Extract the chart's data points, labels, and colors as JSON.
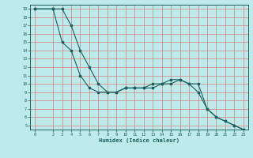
{
  "xlabel": "Humidex (Indice chaleur)",
  "bg_color": "#beeaea",
  "grid_color": "#d08080",
  "line_color": "#1a5f5f",
  "curve1_x": [
    0,
    2,
    3,
    4,
    5,
    6,
    7,
    8,
    9,
    10,
    11,
    12,
    13,
    14,
    15,
    16,
    17,
    18,
    19,
    20,
    21,
    22,
    23
  ],
  "curve1_y": [
    19,
    19,
    15,
    14,
    11,
    9.5,
    9,
    9,
    9,
    9.5,
    9.5,
    9.5,
    10,
    10,
    10.5,
    10.5,
    10,
    9,
    7,
    6,
    5.5,
    5,
    4.5
  ],
  "curve2_x": [
    0,
    2,
    3,
    4,
    5,
    6,
    7,
    8,
    9,
    10,
    11,
    12,
    13,
    14,
    15,
    16,
    17,
    18,
    19,
    20,
    21,
    22,
    23
  ],
  "curve2_y": [
    19,
    19,
    19,
    17,
    14,
    12,
    10,
    9,
    9,
    9.5,
    9.5,
    9.5,
    9.5,
    10,
    10,
    10.5,
    10,
    10,
    7,
    6,
    5.5,
    5,
    4.5
  ],
  "xlim": [
    -0.5,
    23.5
  ],
  "ylim": [
    4.5,
    19.5
  ],
  "yticks": [
    5,
    6,
    7,
    8,
    9,
    10,
    11,
    12,
    13,
    14,
    15,
    16,
    17,
    18,
    19
  ],
  "xticks": [
    0,
    2,
    3,
    4,
    5,
    6,
    7,
    8,
    9,
    10,
    11,
    12,
    13,
    14,
    15,
    16,
    17,
    18,
    19,
    20,
    21,
    22,
    23
  ]
}
